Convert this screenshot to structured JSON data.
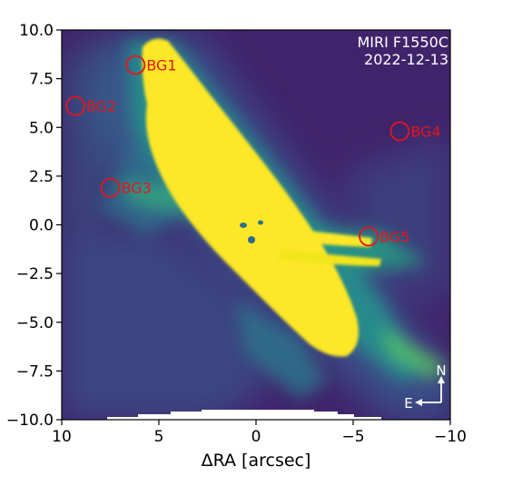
{
  "image": {
    "instrument_label": "MIRI F1550C",
    "date_label": "2022-12-13",
    "xlabel": "ΔRA [arcsec]",
    "ylabel": "",
    "colors": {
      "background": "#40246b",
      "saturated": "#fde725",
      "marker": "#e8141b",
      "annotation": "#ffffff"
    }
  },
  "axes": {
    "x_range": [
      10,
      -10
    ],
    "y_range": [
      -10,
      10
    ],
    "x_ticks": [
      {
        "value": 10,
        "label": "10"
      },
      {
        "value": 5,
        "label": "5"
      },
      {
        "value": 0,
        "label": "0"
      },
      {
        "value": -5,
        "label": "−5"
      },
      {
        "value": -10,
        "label": "−10"
      }
    ],
    "y_ticks": [
      {
        "value": 10,
        "label": "10.0"
      },
      {
        "value": 7.5,
        "label": "7.5"
      },
      {
        "value": 5,
        "label": "5.0"
      },
      {
        "value": 2.5,
        "label": "2.5"
      },
      {
        "value": 0,
        "label": "0.0"
      },
      {
        "value": -2.5,
        "label": "−2.5"
      },
      {
        "value": -5,
        "label": "−5.0"
      },
      {
        "value": -7.5,
        "label": "−7.5"
      },
      {
        "value": -10,
        "label": "−10.0"
      }
    ]
  },
  "markers": [
    {
      "label": "BG1",
      "ra": 6.2,
      "dec": 8.2
    },
    {
      "label": "BG2",
      "ra": 9.3,
      "dec": 6.1
    },
    {
      "label": "BG3",
      "ra": 7.5,
      "dec": 1.9
    },
    {
      "label": "BG4",
      "ra": -7.4,
      "dec": 4.8
    },
    {
      "label": "BG5",
      "ra": -5.8,
      "dec": -0.6
    }
  ],
  "compass": {
    "north": "N",
    "east": "E"
  }
}
